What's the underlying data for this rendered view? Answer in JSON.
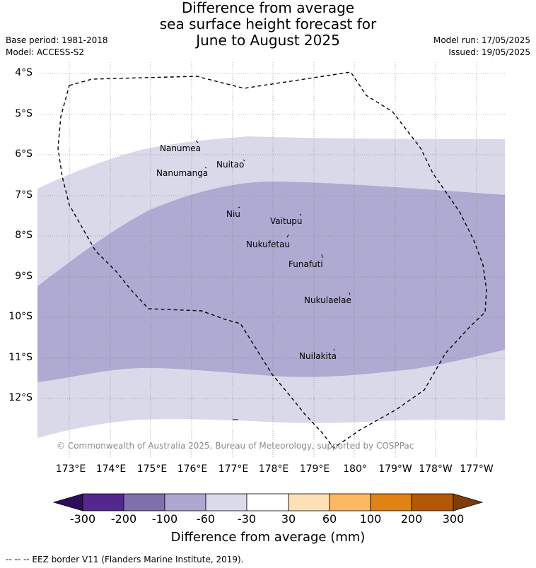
{
  "title": {
    "line1": "Difference from average",
    "line2": "sea surface height forecast for",
    "line3": "June to August 2025"
  },
  "meta_left": {
    "base_period": "Base period: 1981-2018",
    "model": "Model: ACCESS-S2"
  },
  "meta_right": {
    "model_run": "Model run: 17/05/2025",
    "issued": "Issued: 19/05/2025"
  },
  "map": {
    "lat_labels": [
      "4°S",
      "5°S",
      "6°S",
      "7°S",
      "8°S",
      "9°S",
      "10°S",
      "11°S",
      "12°S"
    ],
    "lon_labels": [
      "173°E",
      "174°E",
      "175°E",
      "176°E",
      "177°E",
      "178°E",
      "179°E",
      "180°",
      "179°W",
      "178°W",
      "177°W"
    ],
    "places": [
      {
        "name": "Nanumea"
      },
      {
        "name": "Nuitao"
      },
      {
        "name": "Nanumanga"
      },
      {
        "name": "Niu"
      },
      {
        "name": "Vaitupu"
      },
      {
        "name": "Nukufetau"
      },
      {
        "name": "Funafuti"
      },
      {
        "name": "Nukulaelae"
      },
      {
        "name": "Nuilakita"
      }
    ],
    "copyright": "© Commonwealth of Australia 2025, Bureau of Meteorology, supported by COSPPac"
  },
  "colorbar": {
    "labels": [
      "-300",
      "-200",
      "-100",
      "-60",
      "-30",
      "30",
      "60",
      "100",
      "200",
      "300"
    ],
    "colors": [
      "#2e0c5a",
      "#54278f",
      "#7f70ab",
      "#aea8d0",
      "#dadaea",
      "#ffffff",
      "#fee0b6",
      "#fdb863",
      "#e08214",
      "#b35806",
      "#7f3b08"
    ],
    "title": "Difference from average (mm)"
  },
  "footnote": "--  --  -- EEZ border V11 (Flanders Marine Institute, 2019)."
}
